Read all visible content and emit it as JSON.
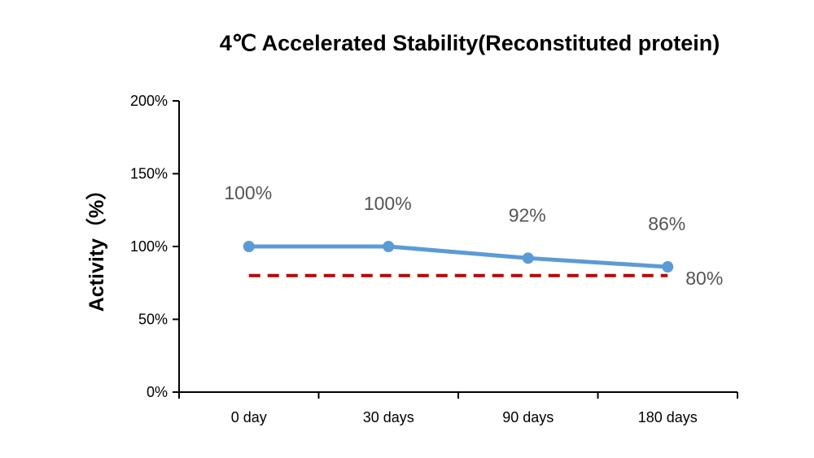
{
  "chart_data": {
    "type": "line",
    "title": "4℃ Accelerated Stability(Reconstituted protein)",
    "xlabel": "",
    "ylabel": "Activity（%）",
    "categories": [
      "0 day",
      "30 days",
      "90 days",
      "180 days"
    ],
    "ylim": [
      0,
      200
    ],
    "yticks": [
      0,
      50,
      100,
      150,
      200
    ],
    "ytick_labels": [
      "0%",
      "50%",
      "100%",
      "150%",
      "200%"
    ],
    "grid": false,
    "legend": "none",
    "series": [
      {
        "values": [
          100,
          100,
          92,
          86
        ],
        "data_labels": [
          "100%",
          "100%",
          "92%",
          "86%"
        ],
        "color": "#5b9bd5",
        "style": "solid-with-markers"
      }
    ],
    "threshold": {
      "value": 80,
      "label": "80%",
      "color": "#c00000",
      "style": "dashed"
    }
  }
}
